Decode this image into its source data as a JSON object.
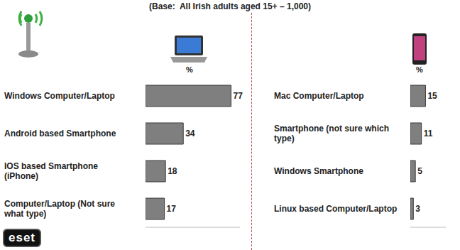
{
  "title": "(Base:  All Irish adults aged 15+ – 1,000)",
  "logo": "eset",
  "chart_data": [
    {
      "type": "bar",
      "orientation": "horizontal",
      "subtitle": "%",
      "categories": [
        "Windows Computer/Laptop",
        "Android based Smartphone",
        "IOS based Smartphone (iPhone)",
        "Computer/Laptop (Not sure what type)"
      ],
      "values": [
        77,
        34,
        18,
        17
      ],
      "color": "#7f7f7f",
      "xlim": [
        0,
        85
      ],
      "data_labels": true,
      "tick_labels": "y",
      "grid": false
    },
    {
      "type": "bar",
      "orientation": "horizontal",
      "subtitle": "%",
      "categories": [
        "Mac Computer/Laptop",
        "Smartphone (not sure which type)",
        "Windows Smartphone",
        "Linux based Computer/Laptop"
      ],
      "values": [
        15,
        11,
        5,
        3
      ],
      "color": "#7f7f7f",
      "xlim": [
        0,
        35
      ],
      "data_labels": true,
      "tick_labels": "y",
      "grid": false
    }
  ]
}
